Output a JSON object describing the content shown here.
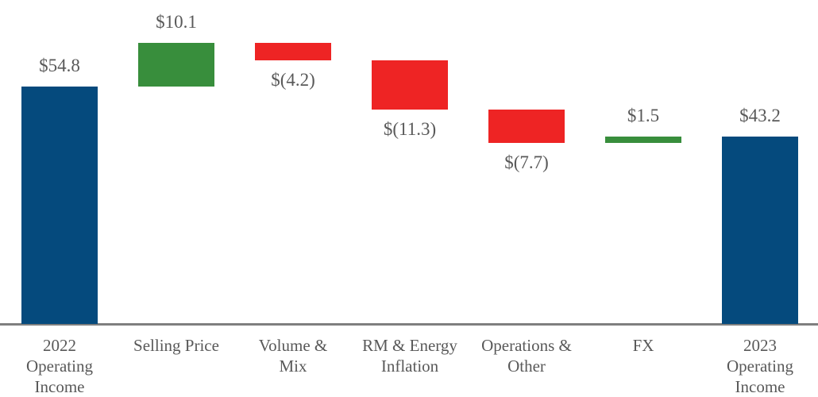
{
  "chart_data": {
    "type": "waterfall",
    "title": "",
    "xlabel": "",
    "ylabel": "",
    "ylim": [
      0,
      64.9
    ],
    "grid": false,
    "legend": false,
    "categories": [
      "2022 Operating Income",
      "Selling Price",
      "Volume & Mix",
      "RM & Energy Inflation",
      "Operations & Other",
      "FX",
      "2023 Operating Income"
    ],
    "bars": [
      {
        "category": "2022 Operating Income",
        "category_lines": [
          "2022",
          "Operating",
          "Income"
        ],
        "value": 54.8,
        "label": "$54.8",
        "kind": "total"
      },
      {
        "category": "Selling Price",
        "category_lines": [
          "Selling Price"
        ],
        "value": 10.1,
        "label": "$10.1",
        "kind": "increase"
      },
      {
        "category": "Volume & Mix",
        "category_lines": [
          "Volume &",
          "Mix"
        ],
        "value": -4.2,
        "label": "$(4.2)",
        "kind": "decrease"
      },
      {
        "category": "RM & Energy Inflation",
        "category_lines": [
          "RM & Energy",
          "Inflation"
        ],
        "value": -11.3,
        "label": "$(11.3)",
        "kind": "decrease"
      },
      {
        "category": "Operations & Other",
        "category_lines": [
          "Operations &",
          "Other"
        ],
        "value": -7.7,
        "label": "$(7.7)",
        "kind": "decrease"
      },
      {
        "category": "FX",
        "category_lines": [
          "FX"
        ],
        "value": 1.5,
        "label": "$1.5",
        "kind": "increase"
      },
      {
        "category": "2023 Operating Income",
        "category_lines": [
          "2023",
          "Operating",
          "Income"
        ],
        "value": 43.2,
        "label": "$43.2",
        "kind": "total"
      }
    ],
    "colors": {
      "total": "#054A7D",
      "increase": "#388E3C",
      "decrease": "#EE2424",
      "label_text": "#595959",
      "axis_line": "#7F7F7F"
    }
  }
}
